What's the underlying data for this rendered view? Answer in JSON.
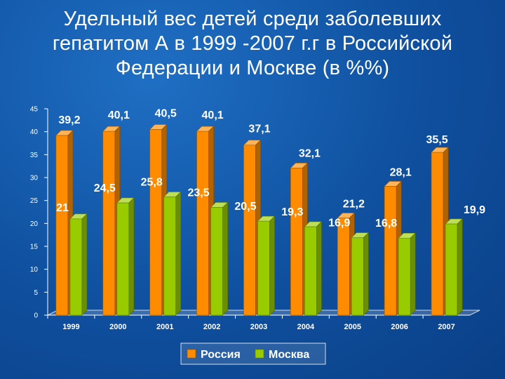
{
  "chart_data": {
    "type": "bar",
    "title_lines": [
      "Удельный вес детей среди заболевших",
      "гепатитом А в 1999 -2007 г.г в Российской",
      "Федерации и Москве (в %%)"
    ],
    "categories": [
      "1999",
      "2000",
      "2001",
      "2002",
      "2003",
      "2004",
      "2005",
      "2006",
      "2007"
    ],
    "series": [
      {
        "name": "Россия",
        "color": "#ff8c00",
        "values": [
          39.2,
          40.1,
          40.5,
          40.1,
          37.1,
          32.1,
          21.2,
          28.1,
          35.5
        ],
        "labels": [
          "39,2",
          "40,1",
          "40,5",
          "40,1",
          "37,1",
          "32,1",
          "21,2",
          "28,1",
          "35,5"
        ]
      },
      {
        "name": "Москва",
        "color": "#99cc00",
        "values": [
          21,
          24.5,
          25.8,
          23.5,
          20.5,
          19.3,
          16.9,
          16.8,
          19.9
        ],
        "labels": [
          "21",
          "24,5",
          "25,8",
          "23,5",
          "20,5",
          "19,3",
          "16,9",
          "16,8",
          "19,9"
        ]
      }
    ],
    "ylim": [
      0,
      45
    ],
    "yticks": [
      0,
      5,
      10,
      15,
      20,
      25,
      30,
      35,
      40,
      45
    ],
    "legend_position": "bottom",
    "grid": false
  }
}
